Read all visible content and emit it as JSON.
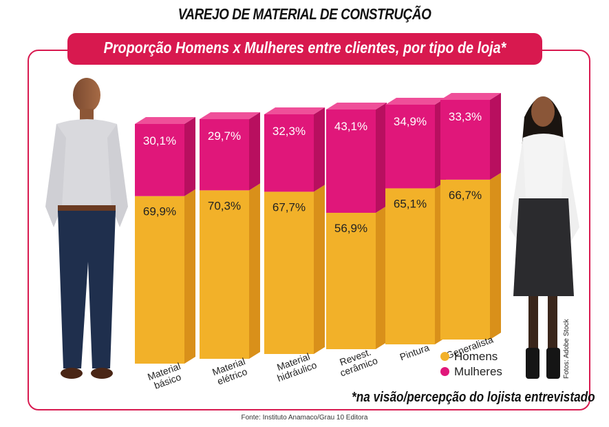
{
  "title": "VAREJO DE MATERIAL DE CONSTRUÇÃO",
  "banner": "Proporção Homens x Mulheres entre clientes, por tipo de loja*",
  "note": "*na visão/percepção do lojista entrevistado",
  "source": "Fonte: Instituto Anamaco/Grau 10 Editora",
  "photo_credit": "Fotos: Adobe Stock",
  "chart_data": {
    "type": "bar",
    "stacked": true,
    "unit": "%",
    "ylim": [
      0,
      100
    ],
    "categories": [
      [
        "Material",
        "básico"
      ],
      [
        "Material",
        "elétrico"
      ],
      [
        "Material",
        "hidráulico"
      ],
      [
        "Revest.",
        "cerâmico"
      ],
      [
        "Pintura"
      ],
      [
        "Generalista"
      ]
    ],
    "series": [
      {
        "name": "Homens",
        "values": [
          69.9,
          70.3,
          67.7,
          56.9,
          65.1,
          66.7
        ],
        "labels": [
          "69,9%",
          "70,3%",
          "67,7%",
          "56,9%",
          "65,1%",
          "66,7%"
        ],
        "color": "#f2b129"
      },
      {
        "name": "Mulheres",
        "values": [
          30.1,
          29.7,
          32.3,
          43.1,
          34.9,
          33.3
        ],
        "labels": [
          "30,1%",
          "29,7%",
          "32,3%",
          "43,1%",
          "34,9%",
          "33,3%"
        ],
        "color": "#e0177a"
      }
    ],
    "legend": "bottom-right",
    "grid": false
  }
}
